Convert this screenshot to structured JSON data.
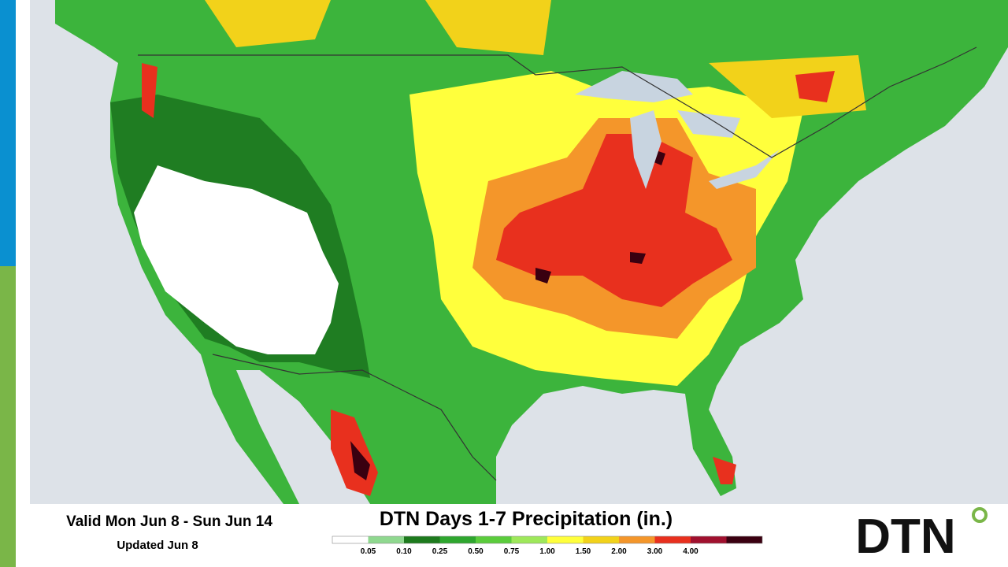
{
  "header": {
    "valid": "Valid Mon Jun 8 - Sun Jun 14",
    "updated": "Updated Jun 8",
    "title": "DTN Days 1-7 Precipitation (in.)",
    "logo": "DTN"
  },
  "legend": {
    "labels": [
      "0.05",
      "0.10",
      "0.25",
      "0.50",
      "0.75",
      "1.00",
      "1.50",
      "2.00",
      "3.00",
      "4.00"
    ],
    "colors": [
      "#ffffff",
      "#8fd88f",
      "#1d7a1d",
      "#2ea62e",
      "#5bcc3c",
      "#9ee85a",
      "#ffff3c",
      "#f2d21a",
      "#f4962a",
      "#e8301e",
      "#a0102e",
      "#3a0010"
    ]
  }
}
